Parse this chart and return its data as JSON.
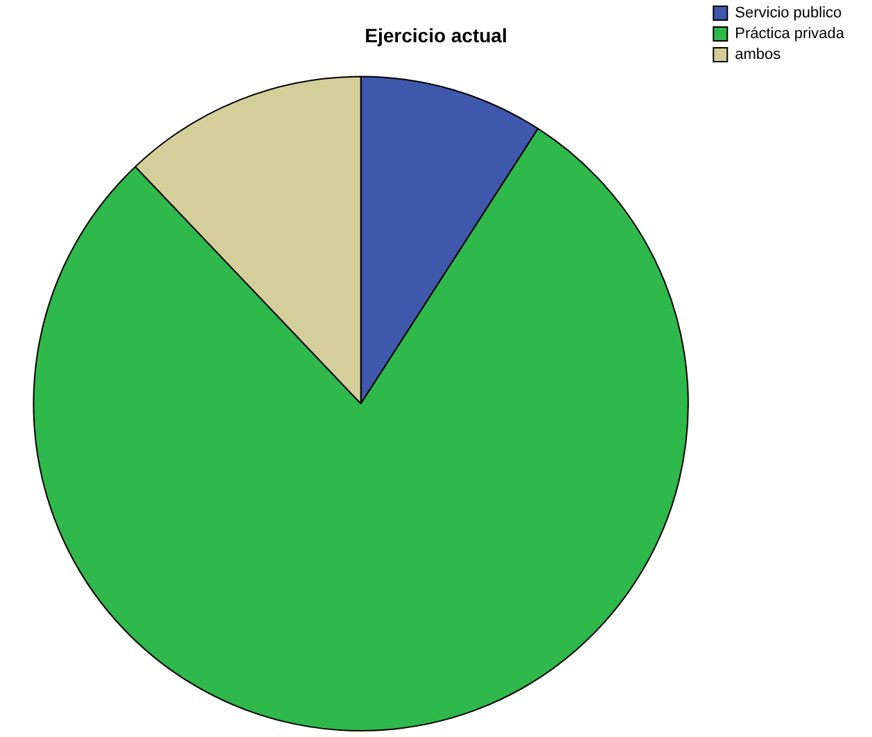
{
  "chart_data": {
    "type": "pie",
    "title": "Ejercicio actual",
    "categories": [
      "Servicio publico",
      "Práctica privada",
      "ambos"
    ],
    "values": [
      9.1,
      78.8,
      12.1
    ],
    "colors": [
      "#3f58ab",
      "#2fb84b",
      "#d4cf9a"
    ],
    "legend": "top right"
  }
}
